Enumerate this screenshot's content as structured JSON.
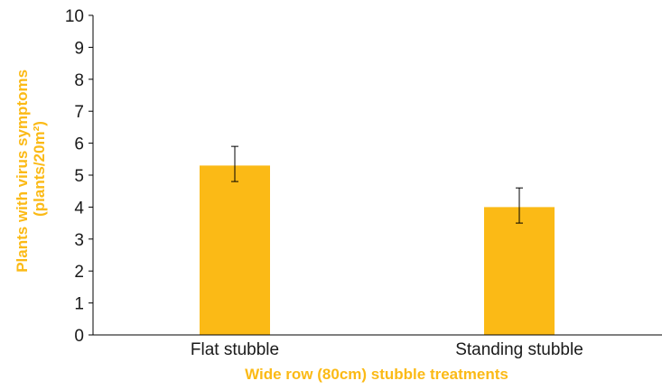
{
  "colors": {
    "accent": "#FBBA16",
    "axis": "#000000",
    "text": "#1a1a1a"
  },
  "chart_data": {
    "type": "bar",
    "categories": [
      "Flat stubble",
      "Standing stubble"
    ],
    "values": [
      5.3,
      4.0
    ],
    "error_low": [
      4.8,
      3.5
    ],
    "error_high": [
      5.9,
      4.6
    ],
    "ylim": [
      0,
      10
    ],
    "yticks": [
      "0",
      "1",
      "2",
      "3",
      "4",
      "5",
      "6",
      "7",
      "8",
      "9",
      "10"
    ],
    "xlabel": "Wide row (80cm) stubble treatments",
    "ylabel_line1": "Plants with virus symptoms",
    "ylabel_line2": "(plants/20m²)",
    "grid": false,
    "legend": "none"
  }
}
